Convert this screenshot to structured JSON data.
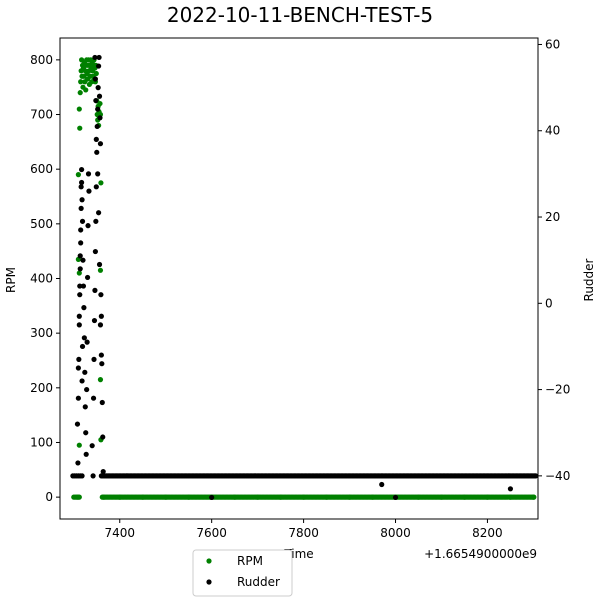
{
  "chart_data": {
    "type": "scatter",
    "title": "2022-10-11-BENCH-TEST-5",
    "xlabel": "Time",
    "x_offset_label": "+1.6654900000e9",
    "ylabel": "RPM",
    "y2label": "Rudder",
    "xlim": [
      7270,
      8310
    ],
    "ylim": [
      -40,
      840
    ],
    "y2lim": [
      -50,
      61.5
    ],
    "x_ticks": [
      7400,
      7600,
      7800,
      8000,
      8200
    ],
    "y_ticks": [
      0,
      100,
      200,
      300,
      400,
      500,
      600,
      700,
      800
    ],
    "y2_ticks": [
      -40,
      -20,
      0,
      20,
      40,
      60
    ],
    "grid": false,
    "legend_position": "bottom-center",
    "series": [
      {
        "name": "RPM",
        "axis": "left",
        "color": "#008000",
        "points": [
          [
            7300,
            0
          ],
          [
            7303,
            0
          ],
          [
            7306,
            0
          ],
          [
            7308,
            0
          ],
          [
            7310,
            0
          ],
          [
            7312,
            0
          ],
          [
            7310,
            590
          ],
          [
            7312,
            710
          ],
          [
            7313,
            675
          ],
          [
            7314,
            740
          ],
          [
            7315,
            760
          ],
          [
            7316,
            780
          ],
          [
            7317,
            800
          ],
          [
            7318,
            770
          ],
          [
            7319,
            790
          ],
          [
            7320,
            750
          ],
          [
            7321,
            785
          ],
          [
            7322,
            770
          ],
          [
            7323,
            795
          ],
          [
            7324,
            760
          ],
          [
            7325,
            780
          ],
          [
            7326,
            745
          ],
          [
            7327,
            790
          ],
          [
            7328,
            800
          ],
          [
            7329,
            775
          ],
          [
            7330,
            765
          ],
          [
            7331,
            790
          ],
          [
            7332,
            800
          ],
          [
            7333,
            780
          ],
          [
            7334,
            755
          ],
          [
            7335,
            790
          ],
          [
            7336,
            770
          ],
          [
            7337,
            800
          ],
          [
            7338,
            785
          ],
          [
            7339,
            760
          ],
          [
            7340,
            795
          ],
          [
            7341,
            780
          ],
          [
            7342,
            770
          ],
          [
            7343,
            790
          ],
          [
            7344,
            800
          ],
          [
            7345,
            765
          ],
          [
            7346,
            785
          ],
          [
            7347,
            760
          ],
          [
            7348,
            790
          ],
          [
            7349,
            775
          ],
          [
            7350,
            725
          ],
          [
            7351,
            700
          ],
          [
            7352,
            690
          ],
          [
            7353,
            715
          ],
          [
            7354,
            680
          ],
          [
            7355,
            705
          ],
          [
            7356,
            695
          ],
          [
            7357,
            720
          ],
          [
            7358,
            700
          ],
          [
            7359,
            575
          ],
          [
            7358,
            415
          ],
          [
            7358,
            215
          ],
          [
            7359,
            105
          ],
          [
            7312,
            95
          ],
          [
            7310,
            435
          ],
          [
            7312,
            410
          ],
          [
            7365,
            0
          ],
          [
            7400,
            0
          ],
          [
            7450,
            0
          ],
          [
            7500,
            0
          ],
          [
            7550,
            0
          ],
          [
            7600,
            0
          ],
          [
            7650,
            0
          ],
          [
            7700,
            0
          ],
          [
            7750,
            0
          ],
          [
            7800,
            0
          ],
          [
            7850,
            0
          ],
          [
            7900,
            0
          ],
          [
            7950,
            0
          ],
          [
            8000,
            0
          ],
          [
            8050,
            0
          ],
          [
            8100,
            0
          ],
          [
            8150,
            0
          ],
          [
            8200,
            0
          ],
          [
            8250,
            0
          ],
          [
            8300,
            0
          ]
        ],
        "band": [
          7362,
          8302,
          0
        ]
      },
      {
        "name": "Rudder",
        "axis": "right",
        "color": "#000000",
        "points": [
          [
            7298,
            -40
          ],
          [
            7302,
            -40
          ],
          [
            7306,
            -40
          ],
          [
            7310,
            -40
          ],
          [
            7314,
            -40
          ],
          [
            7318,
            -40
          ],
          [
            7308,
            -28
          ],
          [
            7309,
            -37
          ],
          [
            7310,
            -22
          ],
          [
            7311,
            -13
          ],
          [
            7312,
            -5
          ],
          [
            7313,
            2
          ],
          [
            7314,
            8
          ],
          [
            7315,
            14
          ],
          [
            7316,
            22
          ],
          [
            7317,
            28
          ],
          [
            7318,
            24
          ],
          [
            7319,
            19
          ],
          [
            7320,
            10
          ],
          [
            7321,
            4
          ],
          [
            7322,
            -1
          ],
          [
            7323,
            -8
          ],
          [
            7324,
            -16
          ],
          [
            7325,
            -24
          ],
          [
            7326,
            -30
          ],
          [
            7327,
            -35
          ],
          [
            7328,
            -20
          ],
          [
            7329,
            -9
          ],
          [
            7330,
            6
          ],
          [
            7331,
            18
          ],
          [
            7332,
            30
          ],
          [
            7333,
            26
          ],
          [
            7310,
            -15
          ],
          [
            7312,
            -3
          ],
          [
            7313,
            4
          ],
          [
            7314,
            11
          ],
          [
            7315,
            17
          ],
          [
            7316,
            27
          ],
          [
            7317,
            31
          ],
          [
            7318,
            -18
          ],
          [
            7319,
            -10
          ],
          [
            7340,
            -33
          ],
          [
            7342,
            -40
          ],
          [
            7343,
            -22
          ],
          [
            7344,
            -13
          ],
          [
            7345,
            -4
          ],
          [
            7346,
            3
          ],
          [
            7347,
            12
          ],
          [
            7348,
            19
          ],
          [
            7349,
            27
          ],
          [
            7350,
            35
          ],
          [
            7351,
            41
          ],
          [
            7352,
            45
          ],
          [
            7353,
            50
          ],
          [
            7354,
            55
          ],
          [
            7355,
            57
          ],
          [
            7356,
            48
          ],
          [
            7357,
            43
          ],
          [
            7358,
            37
          ],
          [
            7359,
            2
          ],
          [
            7360,
            -3
          ],
          [
            7361,
            -14
          ],
          [
            7362,
            -23
          ],
          [
            7363,
            -31
          ],
          [
            7364,
            -39
          ],
          [
            7346,
            57
          ],
          [
            7347,
            52
          ],
          [
            7348,
            47
          ],
          [
            7349,
            38
          ],
          [
            7352,
            30
          ],
          [
            7354,
            21
          ],
          [
            7356,
            9
          ],
          [
            7358,
            -5
          ],
          [
            7360,
            -12
          ],
          [
            7600,
            -45
          ],
          [
            7970,
            -42
          ],
          [
            8000,
            -45
          ],
          [
            8250,
            -43
          ]
        ],
        "band": [
          7360,
          8305,
          -40
        ]
      }
    ]
  }
}
